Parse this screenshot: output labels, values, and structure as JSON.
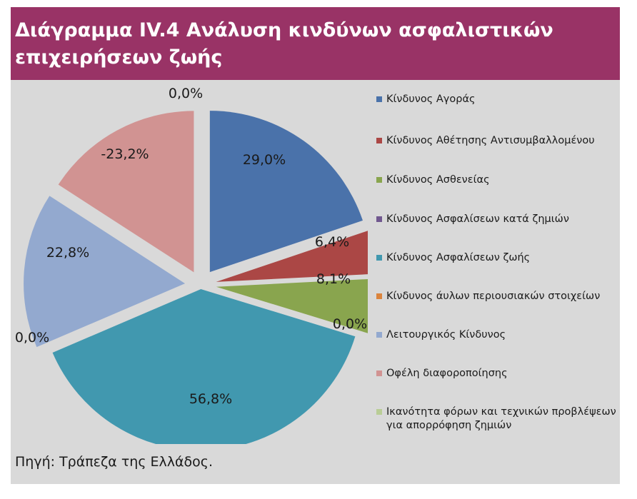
{
  "title": "Διάγραμμα IV.4 Ανάλυση κινδύνων ασφαλιστικών επιχειρήσεων ζωής",
  "source": "Πηγή: Τράπεζα της Ελλάδος.",
  "chart_data": {
    "type": "pie",
    "title": "Διάγραμμα IV.4 Ανάλυση κινδύνων ασφαλιστικών επιχειρήσεων ζωής",
    "categories": [
      "Κίνδυνος Αγοράς",
      "Κίνδυνος Αθέτησης Αντισυμβαλλομένου",
      "Κίνδυνος Ασθενείας",
      "Κίνδυνος Ασφαλίσεων κατά ζημιών",
      "Κίνδυνος Ασφαλίσεων ζωής",
      "Κίνδυνος άυλων περιουσιακών στοιχείων",
      "Λειτουργικός Κίνδυνος",
      "Οφέλη διαφοροποίησης",
      "Ικανότητα φόρων και τεχνικών προβλέψεων για απορρόφηση ζημιών"
    ],
    "values": [
      29.0,
      6.4,
      8.1,
      0.0,
      56.8,
      0.0,
      22.8,
      -23.2,
      0.0
    ],
    "data_labels": [
      "29,0%",
      "6,4%",
      "8,1%",
      "0,0%",
      "56,8%",
      "0,0%",
      "22,8%",
      "-23,2%",
      "0,0%"
    ],
    "colors": [
      "#4a72aa",
      "#ab4745",
      "#89a54e",
      "#71588f",
      "#4198af",
      "#db843d",
      "#93a9cf",
      "#d19392",
      "#b9cd96"
    ],
    "legend_position": "right"
  }
}
